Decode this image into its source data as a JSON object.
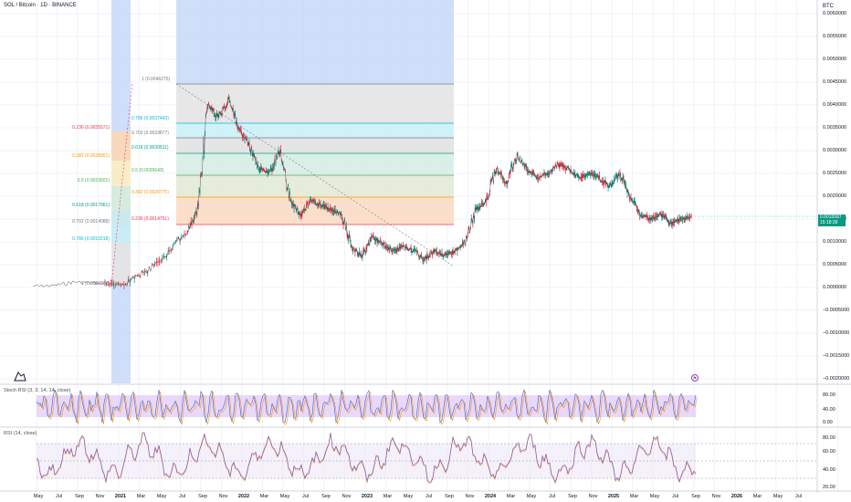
{
  "header": {
    "symbol": "SOL / Bitcoin · 1D · BINANCE",
    "currency": "BTC"
  },
  "price_axis": {
    "ticks": [
      "0.0060000",
      "0.0055000",
      "0.0050000",
      "0.0045000",
      "0.0040000",
      "0.0035000",
      "0.0030000",
      "0.0025000",
      "0.0020000",
      "0.0015000",
      "0.0010000",
      "0.0005000",
      "0.0000000",
      "−0.0005000",
      "−0.0010000",
      "−0.0015000",
      "−0.0020000"
    ]
  },
  "last_price": {
    "value": "0.0015587",
    "countdown": "15:18:39"
  },
  "time_axis": {
    "labels": [
      "May",
      "Jul",
      "Sep",
      "Nov",
      "2021",
      "Mar",
      "May",
      "Jul",
      "Sep",
      "Nov",
      "2022",
      "Mar",
      "May",
      "Jul",
      "Sep",
      "Nov",
      "2023",
      "Mar",
      "May",
      "Jul",
      "Sep",
      "Nov",
      "2024",
      "Mar",
      "May",
      "Jul",
      "Sep",
      "Nov",
      "2025",
      "Mar",
      "May",
      "Jul",
      "Sep",
      "Nov",
      "2026",
      "Mar",
      "May",
      "Jul"
    ]
  },
  "fib_left": {
    "levels": [
      {
        "label": "0.236 (0.0035571)",
        "color": "#f23645"
      },
      {
        "label": "0.382 (0.0028951)",
        "color": "#ff9800"
      },
      {
        "label": "0.5 (0.0023601)",
        "color": "#4caf50"
      },
      {
        "label": "0.618 (0.0017961)",
        "color": "#089981"
      },
      {
        "label": "0.702 (0.0014088)",
        "color": "#787b86"
      },
      {
        "label": "0.786 (0.0010218)",
        "color": "#00bcd4"
      },
      {
        "label": "1 (0.0000337)",
        "color": "#787b86"
      }
    ],
    "top_label": "1 (0.0046275)"
  },
  "fib_right": {
    "levels": [
      {
        "label": "0.786 (0.0037443)",
        "color": "#00bcd4"
      },
      {
        "label": "0.702 (0.0033877)",
        "color": "#787b86"
      },
      {
        "label": "0.618 (0.0030511)",
        "color": "#089981"
      },
      {
        "label": "0.5 (0.0025643)",
        "color": "#4caf50"
      },
      {
        "label": "0.382 (0.0020775)",
        "color": "#ff9800"
      },
      {
        "label": "0.236 (0.0014751)",
        "color": "#f23645"
      }
    ]
  },
  "stoch_rsi": {
    "title": "Stoch RSI (3, 3, 14, 14, close)",
    "ticks": [
      "80.00",
      "40.00",
      "0.00"
    ]
  },
  "rsi": {
    "title": "RSI (14, close)",
    "ticks": [
      "80.00",
      "60.00",
      "40.00",
      "20.00"
    ]
  },
  "flag_text": "⚑",
  "colors": {
    "bull": "#089981",
    "bear": "#f23645",
    "zone_blue": "#bcd1f7",
    "stoch_band": "#d9b8f5",
    "rsi_line": "#7e57c2",
    "signal_line": "#ff9800"
  },
  "chart_data": {
    "type": "line",
    "title": "SOL / Bitcoin · 1D · BINANCE",
    "xlabel": "",
    "ylabel": "BTC",
    "ylim": [
      -0.002,
      0.0062
    ],
    "x": [
      "2020-04",
      "2020-06",
      "2020-08",
      "2020-10",
      "2020-11",
      "2021-01",
      "2021-03",
      "2021-05",
      "2021-07",
      "2021-08",
      "2021-09",
      "2021-10",
      "2021-11",
      "2021-12",
      "2022-01",
      "2022-02",
      "2022-03",
      "2022-04",
      "2022-05",
      "2022-06",
      "2022-07",
      "2022-08",
      "2022-09",
      "2022-10",
      "2022-11",
      "2022-12",
      "2023-01",
      "2023-02",
      "2023-03",
      "2023-04",
      "2023-05",
      "2023-06",
      "2023-07",
      "2023-08",
      "2023-09",
      "2023-10",
      "2023-11",
      "2023-12",
      "2024-01",
      "2024-02",
      "2024-03",
      "2024-04",
      "2024-05",
      "2024-06",
      "2024-07",
      "2024-08",
      "2024-09",
      "2024-10",
      "2024-11",
      "2024-12",
      "2025-01",
      "2025-02",
      "2025-03",
      "2025-04",
      "2025-05",
      "2025-06",
      "2025-07",
      "2025-08"
    ],
    "series": [
      {
        "name": "SOLBTC",
        "values": [
          3e-05,
          4e-05,
          0.00012,
          0.0001,
          8e-05,
          8e-05,
          0.00035,
          0.00075,
          0.0012,
          0.0017,
          0.004,
          0.0037,
          0.0041,
          0.0035,
          0.0031,
          0.0026,
          0.0025,
          0.003,
          0.0019,
          0.0016,
          0.0019,
          0.0018,
          0.0017,
          0.0016,
          0.00085,
          0.0007,
          0.0011,
          0.00095,
          0.0008,
          0.0009,
          0.0008,
          0.0006,
          0.0008,
          0.0007,
          0.0008,
          0.001,
          0.0017,
          0.0019,
          0.0026,
          0.0023,
          0.0029,
          0.0026,
          0.0024,
          0.0025,
          0.0027,
          0.0026,
          0.0024,
          0.0025,
          0.0024,
          0.0022,
          0.0025,
          0.002,
          0.0016,
          0.0015,
          0.0016,
          0.0014,
          0.0015,
          0.00156
        ]
      }
    ]
  }
}
